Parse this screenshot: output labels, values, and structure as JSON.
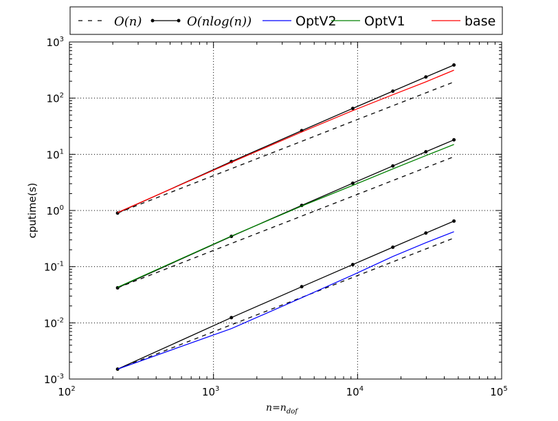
{
  "chart_data": {
    "type": "line",
    "title": "",
    "xlabel": "n=n_dof",
    "xlabel_main": "n=n",
    "xlabel_sub": "dof",
    "ylabel": "cputime(s)",
    "xscale": "log",
    "yscale": "log",
    "xlim": [
      100,
      100000
    ],
    "ylim": [
      0.001,
      1000
    ],
    "xticks": [
      2,
      3,
      4,
      5
    ],
    "yticks": [
      -3,
      -2,
      -1,
      0,
      1,
      2,
      3
    ],
    "tick_base": "10",
    "grid": true,
    "legend_position": "top-outside",
    "legend": [
      {
        "label": "O(n)",
        "color": "#000000",
        "style": "dashed"
      },
      {
        "label": "O(nlog(n))",
        "color": "#000000",
        "style": "solid-marker"
      },
      {
        "label": "OptV2",
        "color": "#0000ff",
        "style": "solid"
      },
      {
        "label": "OptV1",
        "color": "#008000",
        "style": "solid"
      },
      {
        "label": "base",
        "color": "#ff0000",
        "style": "solid"
      }
    ],
    "x": [
      216,
      1331,
      4096,
      9261,
      17576,
      29791,
      46656
    ],
    "series": [
      {
        "name": "O(n)",
        "group": "base",
        "color": "#000000",
        "style": "dashed",
        "values": [
          0.9,
          5.55,
          17.06,
          38.6,
          73.2,
          124.1,
          194.4
        ]
      },
      {
        "name": "O(nlog(n))",
        "group": "base",
        "color": "#000000",
        "style": "solid-marker",
        "values": [
          0.9,
          7.42,
          26.4,
          65.6,
          133.1,
          238,
          388.8
        ]
      },
      {
        "name": "base",
        "color": "#ff0000",
        "style": "solid",
        "values": [
          0.92,
          7.2,
          25,
          60,
          115,
          195,
          315
        ]
      },
      {
        "name": "O(n)",
        "group": "OptV1",
        "color": "#000000",
        "style": "dashed",
        "values": [
          0.042,
          0.259,
          0.796,
          1.8,
          3.42,
          5.79,
          9.07
        ]
      },
      {
        "name": "O(nlog(n))",
        "group": "OptV1",
        "color": "#000000",
        "style": "solid-marker",
        "values": [
          0.042,
          0.346,
          1.233,
          3.06,
          6.21,
          11.1,
          18.1
        ]
      },
      {
        "name": "OptV1",
        "color": "#008000",
        "style": "solid",
        "values": [
          0.043,
          0.35,
          1.2,
          2.8,
          5.5,
          9.5,
          15
        ]
      },
      {
        "name": "O(n)",
        "group": "OptV2",
        "color": "#000000",
        "style": "dashed",
        "values": [
          0.0015,
          0.00924,
          0.0284,
          0.0643,
          0.122,
          0.207,
          0.324
        ]
      },
      {
        "name": "O(nlog(n))",
        "group": "OptV2",
        "color": "#000000",
        "style": "solid-marker",
        "values": [
          0.0015,
          0.0124,
          0.044,
          0.109,
          0.222,
          0.397,
          0.648
        ]
      },
      {
        "name": "OptV2",
        "color": "#0000ff",
        "style": "solid",
        "values": [
          0.0015,
          0.0079,
          0.028,
          0.071,
          0.152,
          0.267,
          0.42
        ]
      }
    ]
  }
}
